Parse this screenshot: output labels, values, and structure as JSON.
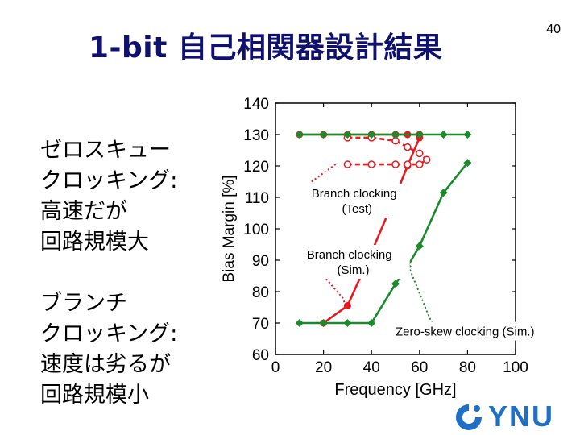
{
  "slide": {
    "title": "1-bit 自己相関器設計結果",
    "page_number": "40",
    "side_text_1": "ゼロスキュー\nクロッキング:\n高速だが\n回路規模大",
    "side_text_2": "ブランチ\nクロッキング:\n速度は劣るが\n回路規模小",
    "logo_text": "YNU"
  },
  "colors": {
    "red": "#e8191e",
    "green": "#1a8a2a",
    "title": "#10106e",
    "logo": "#1f6fc4"
  },
  "chart_data": {
    "type": "line",
    "xlabel": "Frequency [GHz]",
    "ylabel": "Bias Margin [%]",
    "xlim": [
      0,
      100
    ],
    "ylim": [
      60,
      140
    ],
    "xticks": [
      0,
      20,
      40,
      60,
      80,
      100
    ],
    "yticks": [
      60,
      70,
      80,
      90,
      100,
      110,
      120,
      130,
      140
    ],
    "grid": false,
    "series": [
      {
        "color": "#e8191e",
        "style": "solid",
        "marker": "circle",
        "x": [
          20,
          30,
          40,
          50,
          55,
          60
        ],
        "y": [
          70,
          75.5,
          92.5,
          110.5,
          120,
          129
        ]
      },
      {
        "color": "#e8191e",
        "style": "solid",
        "marker": "circle",
        "x": [
          10,
          20,
          30,
          40,
          50,
          55,
          60
        ],
        "y": [
          130,
          130,
          130,
          130,
          130,
          130,
          130
        ]
      },
      {
        "color": "#e8191e",
        "style": "dashed",
        "marker": "open-circle",
        "x": [
          30,
          40,
          50,
          55,
          60,
          63,
          60,
          55,
          50,
          40,
          30
        ],
        "y": [
          129,
          129,
          128,
          126,
          124,
          122,
          120.5,
          120.5,
          120.5,
          120.5,
          120.5
        ]
      },
      {
        "color": "#1a8a2a",
        "style": "solid",
        "marker": "diamond",
        "x": [
          10,
          20,
          30,
          40,
          50,
          55,
          60,
          70,
          80
        ],
        "y": [
          70,
          70,
          70,
          70,
          82.5,
          88,
          94.5,
          111.5,
          121
        ]
      },
      {
        "color": "#1a8a2a",
        "style": "solid",
        "marker": "diamond",
        "x": [
          10,
          20,
          30,
          40,
          50,
          60,
          70,
          80
        ],
        "y": [
          130,
          130,
          130,
          130,
          130,
          130,
          130,
          130
        ]
      }
    ],
    "annotations": [
      {
        "text": "Branch clocking\n(Test)",
        "x": 15,
        "y": 110
      },
      {
        "text": "Branch clocking\n(Sim.)",
        "x": 13,
        "y": 90.5
      },
      {
        "text": "Zero-skew clocking (Sim.)",
        "x": 50,
        "y": 66
      }
    ]
  }
}
